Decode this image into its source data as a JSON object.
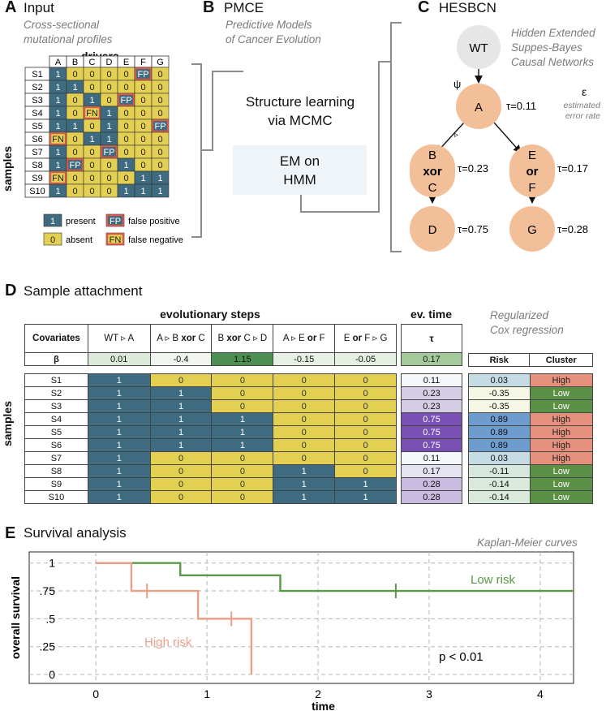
{
  "colors": {
    "present": "#3f6b80",
    "absent": "#e3cf52",
    "fp_fn_border": "#e0584a",
    "node": "#f2bf98",
    "wt_node": "#e6e6e6",
    "low": "#5a9147",
    "high": "#e6907e",
    "low_line": "#5b9848",
    "high_line": "#ec9f88",
    "box_bg": "#eef4f8"
  },
  "panel_a": {
    "letter": "A",
    "title": "Input",
    "subtitle_line1": "Cross-sectional",
    "subtitle_line2": "mutational profiles",
    "drivers_label": "drivers",
    "samples_label": "samples",
    "columns": [
      "A",
      "B",
      "C",
      "D",
      "E",
      "F",
      "G"
    ],
    "rows": [
      {
        "label": "S1",
        "cells": [
          "1",
          "0",
          "0",
          "0",
          "0",
          "FP",
          "0"
        ]
      },
      {
        "label": "S2",
        "cells": [
          "1",
          "1",
          "0",
          "0",
          "0",
          "0",
          "0"
        ]
      },
      {
        "label": "S3",
        "cells": [
          "1",
          "0",
          "1",
          "0",
          "FP",
          "0",
          "0"
        ]
      },
      {
        "label": "S4",
        "cells": [
          "1",
          "0",
          "FN",
          "1",
          "0",
          "0",
          "0"
        ]
      },
      {
        "label": "S5",
        "cells": [
          "1",
          "1",
          "0",
          "1",
          "0",
          "0",
          "FP"
        ]
      },
      {
        "label": "S6",
        "cells": [
          "FN",
          "0",
          "1",
          "1",
          "0",
          "0",
          "0"
        ]
      },
      {
        "label": "S7",
        "cells": [
          "1",
          "0",
          "0",
          "FP",
          "0",
          "0",
          "0"
        ]
      },
      {
        "label": "S8",
        "cells": [
          "1",
          "FP",
          "0",
          "0",
          "1",
          "0",
          "0"
        ]
      },
      {
        "label": "S9",
        "cells": [
          "FN",
          "0",
          "0",
          "0",
          "0",
          "1",
          "1"
        ]
      },
      {
        "label": "S10",
        "cells": [
          "1",
          "0",
          "0",
          "0",
          "1",
          "1",
          "1"
        ]
      }
    ],
    "legend": [
      {
        "symbol": "1",
        "label": "present"
      },
      {
        "symbol": "FP",
        "label": "false positive"
      },
      {
        "symbol": "0",
        "label": "absent"
      },
      {
        "symbol": "FN",
        "label": "false negative"
      }
    ]
  },
  "panel_b": {
    "letter": "B",
    "title": "PMCE",
    "subtitle_line1": "Predictive Models",
    "subtitle_line2": "of Cancer Evolution",
    "text_line1": "Structure learning",
    "text_line2": "via MCMC",
    "box_line1": "EM on",
    "box_line2": "HMM"
  },
  "panel_c": {
    "letter": "C",
    "title": "HESBCN",
    "note_lines": [
      "Hidden Extended",
      "Suppes-Bayes",
      "Causal Networks"
    ],
    "epsilon": "ε",
    "epsilon_lines": [
      "estimated",
      "error rate"
    ],
    "psi": "ψ",
    "arrow_marker": "▹",
    "nodes": {
      "wt": "WT",
      "a": "A",
      "b": "B",
      "xor": "xor",
      "c": "C",
      "e": "E",
      "or": "or",
      "f": "F",
      "d": "D",
      "g": "G"
    },
    "taus": {
      "a": "τ=0.11",
      "bc": "τ=0.23",
      "ef": "τ=0.17",
      "d": "τ=0.75",
      "g": "τ=0.28"
    }
  },
  "panel_d": {
    "letter": "D",
    "title": "Sample attachment",
    "evo_header": "evolutionary steps",
    "evtime_header": "ev. time",
    "cox_line1": "Regularized",
    "cox_line2": "Cox regression",
    "covariates_label": "Covariates",
    "beta_label": "β",
    "tau_label": "τ",
    "samples_label": "samples",
    "steps": [
      {
        "parts": [
          "WT ▹ A"
        ],
        "beta": "0.01",
        "beta_color": "#dcebd9"
      },
      {
        "parts": [
          "A ▹ B ",
          "xor",
          " C"
        ],
        "beta": "-0.4",
        "beta_color": "#f1f5ef"
      },
      {
        "parts": [
          "B ",
          "xor",
          " C ▹ D"
        ],
        "beta": "1.15",
        "beta_color": "#4d8f52"
      },
      {
        "parts": [
          "A ▹ E ",
          "or",
          " F"
        ],
        "beta": "-0.15",
        "beta_color": "#e8f0e5"
      },
      {
        "parts": [
          "E ",
          "or",
          " F ▹ G"
        ],
        "beta": "-0.05",
        "beta_color": "#e5efe2"
      }
    ],
    "evtime_beta": "0.17",
    "evtime_beta_color": "#a4c99b",
    "risk_label": "Risk",
    "cluster_label": "Cluster",
    "rows": [
      {
        "s": "S1",
        "m": [
          "1",
          "0",
          "0",
          "0",
          "0"
        ],
        "tau": "0.11",
        "tau_color": "#f4f8fb",
        "risk": "0.03",
        "risk_color": "#c6dce4",
        "cluster": "High"
      },
      {
        "s": "S2",
        "m": [
          "1",
          "1",
          "0",
          "0",
          "0"
        ],
        "tau": "0.23",
        "tau_color": "#d6cde6",
        "risk": "-0.35",
        "risk_color": "#f4f8e4",
        "cluster": "Low"
      },
      {
        "s": "S3",
        "m": [
          "1",
          "1",
          "0",
          "0",
          "0"
        ],
        "tau": "0.23",
        "tau_color": "#d6cde6",
        "risk": "-0.35",
        "risk_color": "#f4f8e4",
        "cluster": "Low"
      },
      {
        "s": "S4",
        "m": [
          "1",
          "1",
          "1",
          "0",
          "0"
        ],
        "tau": "0.75",
        "tau_color": "#7b50b4",
        "risk": "0.89",
        "risk_color": "#6e9ccf",
        "cluster": "High"
      },
      {
        "s": "S5",
        "m": [
          "1",
          "1",
          "1",
          "0",
          "0"
        ],
        "tau": "0.75",
        "tau_color": "#7b50b4",
        "risk": "0.89",
        "risk_color": "#6e9ccf",
        "cluster": "High"
      },
      {
        "s": "S6",
        "m": [
          "1",
          "1",
          "1",
          "0",
          "0"
        ],
        "tau": "0.75",
        "tau_color": "#7b50b4",
        "risk": "0.89",
        "risk_color": "#6e9ccf",
        "cluster": "High"
      },
      {
        "s": "S7",
        "m": [
          "1",
          "0",
          "0",
          "0",
          "0"
        ],
        "tau": "0.11",
        "tau_color": "#f4f8fb",
        "risk": "0.03",
        "risk_color": "#c6dce4",
        "cluster": "High"
      },
      {
        "s": "S8",
        "m": [
          "1",
          "0",
          "0",
          "1",
          "0"
        ],
        "tau": "0.17",
        "tau_color": "#e6e3f0",
        "risk": "-0.11",
        "risk_color": "#d6e7de",
        "cluster": "Low"
      },
      {
        "s": "S9",
        "m": [
          "1",
          "0",
          "0",
          "1",
          "1"
        ],
        "tau": "0.28",
        "tau_color": "#cabce0",
        "risk": "-0.14",
        "risk_color": "#d9e9dc",
        "cluster": "Low"
      },
      {
        "s": "S10",
        "m": [
          "1",
          "0",
          "0",
          "1",
          "1"
        ],
        "tau": "0.28",
        "tau_color": "#cabce0",
        "risk": "-0.14",
        "risk_color": "#d9e9dc",
        "cluster": "Low"
      }
    ]
  },
  "panel_e": {
    "letter": "E",
    "title": "Survival analysis",
    "method": "Kaplan-Meier curves"
  },
  "chart_data": {
    "type": "line",
    "xlabel": "time",
    "ylabel": "overall survival",
    "xlim": [
      -0.6,
      4.3
    ],
    "ylim": [
      -0.08,
      1.1
    ],
    "xticks": [
      0,
      1,
      2,
      3,
      4
    ],
    "xtick_labels": [
      "0",
      "1",
      "2",
      "3",
      "4"
    ],
    "yticks": [
      0,
      0.25,
      0.5,
      0.75,
      1
    ],
    "ytick_labels": [
      "0",
      ".25",
      ".5",
      ".75",
      "1"
    ],
    "grid": true,
    "series": [
      {
        "name": "Low risk",
        "color": "#5b9848",
        "steps": [
          [
            0,
            1
          ],
          [
            0.76,
            1
          ],
          [
            0.76,
            0.89
          ],
          [
            1.66,
            0.89
          ],
          [
            1.66,
            0.75
          ],
          [
            4.3,
            0.75
          ]
        ],
        "censored": [
          [
            2.7,
            0.75
          ]
        ]
      },
      {
        "name": "High risk",
        "color": "#ec9f88",
        "steps": [
          [
            0,
            1
          ],
          [
            0.32,
            1
          ],
          [
            0.32,
            0.75
          ],
          [
            0.92,
            0.75
          ],
          [
            0.92,
            0.5
          ],
          [
            1.4,
            0.5
          ],
          [
            1.4,
            0
          ]
        ],
        "censored": [
          [
            0.46,
            0.75
          ],
          [
            1.22,
            0.5
          ]
        ]
      }
    ],
    "annotation": "p < 0.01"
  }
}
